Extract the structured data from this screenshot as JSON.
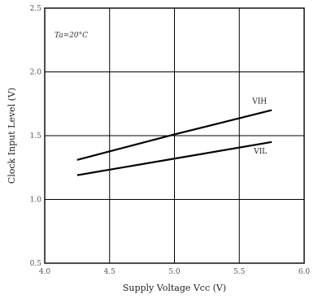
{
  "chart_data": {
    "type": "line",
    "title": "",
    "xlabel": "Supply Voltage Vcc (V)",
    "ylabel": "Clock Input Level (V)",
    "xlim": [
      4.0,
      6.0
    ],
    "ylim": [
      0.5,
      2.5
    ],
    "x_ticks": [
      "4.0",
      "4.5",
      "5.0",
      "5.5",
      "6.0"
    ],
    "y_ticks": [
      "0.5",
      "1.0",
      "1.5",
      "2.0",
      "2.5"
    ],
    "grid": true,
    "annotation": "Ta=20°C",
    "series": [
      {
        "name": "VIH",
        "x": [
          4.25,
          5.0,
          5.75
        ],
        "y": [
          1.31,
          1.51,
          1.7
        ]
      },
      {
        "name": "VIL",
        "x": [
          4.25,
          5.0,
          5.75
        ],
        "y": [
          1.19,
          1.32,
          1.45
        ]
      }
    ],
    "colors": {
      "line": "#000000",
      "grid": "#000000",
      "text": "#222222"
    }
  }
}
